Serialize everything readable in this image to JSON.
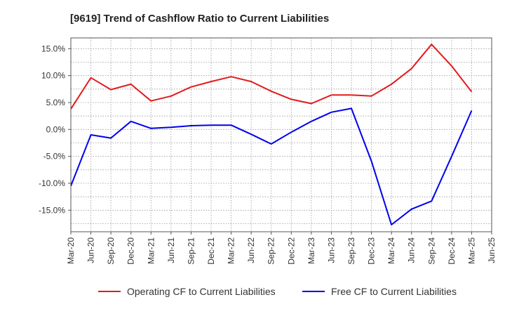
{
  "chart_data": {
    "type": "line",
    "title": "[9619]  Trend of Cashflow Ratio to Current Liabilities",
    "xlabel": "",
    "ylabel": "",
    "categories": [
      "Mar-20",
      "Jun-20",
      "Sep-20",
      "Dec-20",
      "Mar-21",
      "Jun-21",
      "Sep-21",
      "Dec-21",
      "Mar-22",
      "Jun-22",
      "Sep-22",
      "Dec-22",
      "Mar-23",
      "Jun-23",
      "Sep-23",
      "Dec-23",
      "Mar-24",
      "Jun-24",
      "Sep-24",
      "Dec-24",
      "Mar-25",
      "Jun-25"
    ],
    "ylim": [
      -19,
      17
    ],
    "yticks": [
      15,
      10,
      5,
      0,
      -5,
      -10,
      -15
    ],
    "ytick_labels": [
      "15.0%",
      "10.0%",
      "5.0%",
      "0.0%",
      "-5.0%",
      "-10.0%",
      "-15.0%"
    ],
    "grid": true,
    "legend_position": "bottom",
    "series": [
      {
        "name": "Operating CF to Current Liabilities",
        "color": "#e31a1c",
        "values": [
          3.8,
          9.6,
          7.4,
          8.4,
          5.3,
          6.2,
          7.9,
          8.9,
          9.8,
          8.9,
          7.1,
          5.6,
          4.8,
          6.4,
          6.4,
          6.2,
          8.4,
          11.3,
          15.8,
          11.8,
          7.0,
          null
        ]
      },
      {
        "name": "Free CF to Current Liabilities",
        "color": "#0000ee",
        "values": [
          -10.5,
          -1.0,
          -1.6,
          1.5,
          0.2,
          0.4,
          0.7,
          0.8,
          0.8,
          -0.9,
          -2.7,
          -0.5,
          1.5,
          3.2,
          3.9,
          -5.9,
          -17.7,
          -14.8,
          -13.3,
          -5.0,
          3.5,
          null
        ]
      }
    ]
  }
}
